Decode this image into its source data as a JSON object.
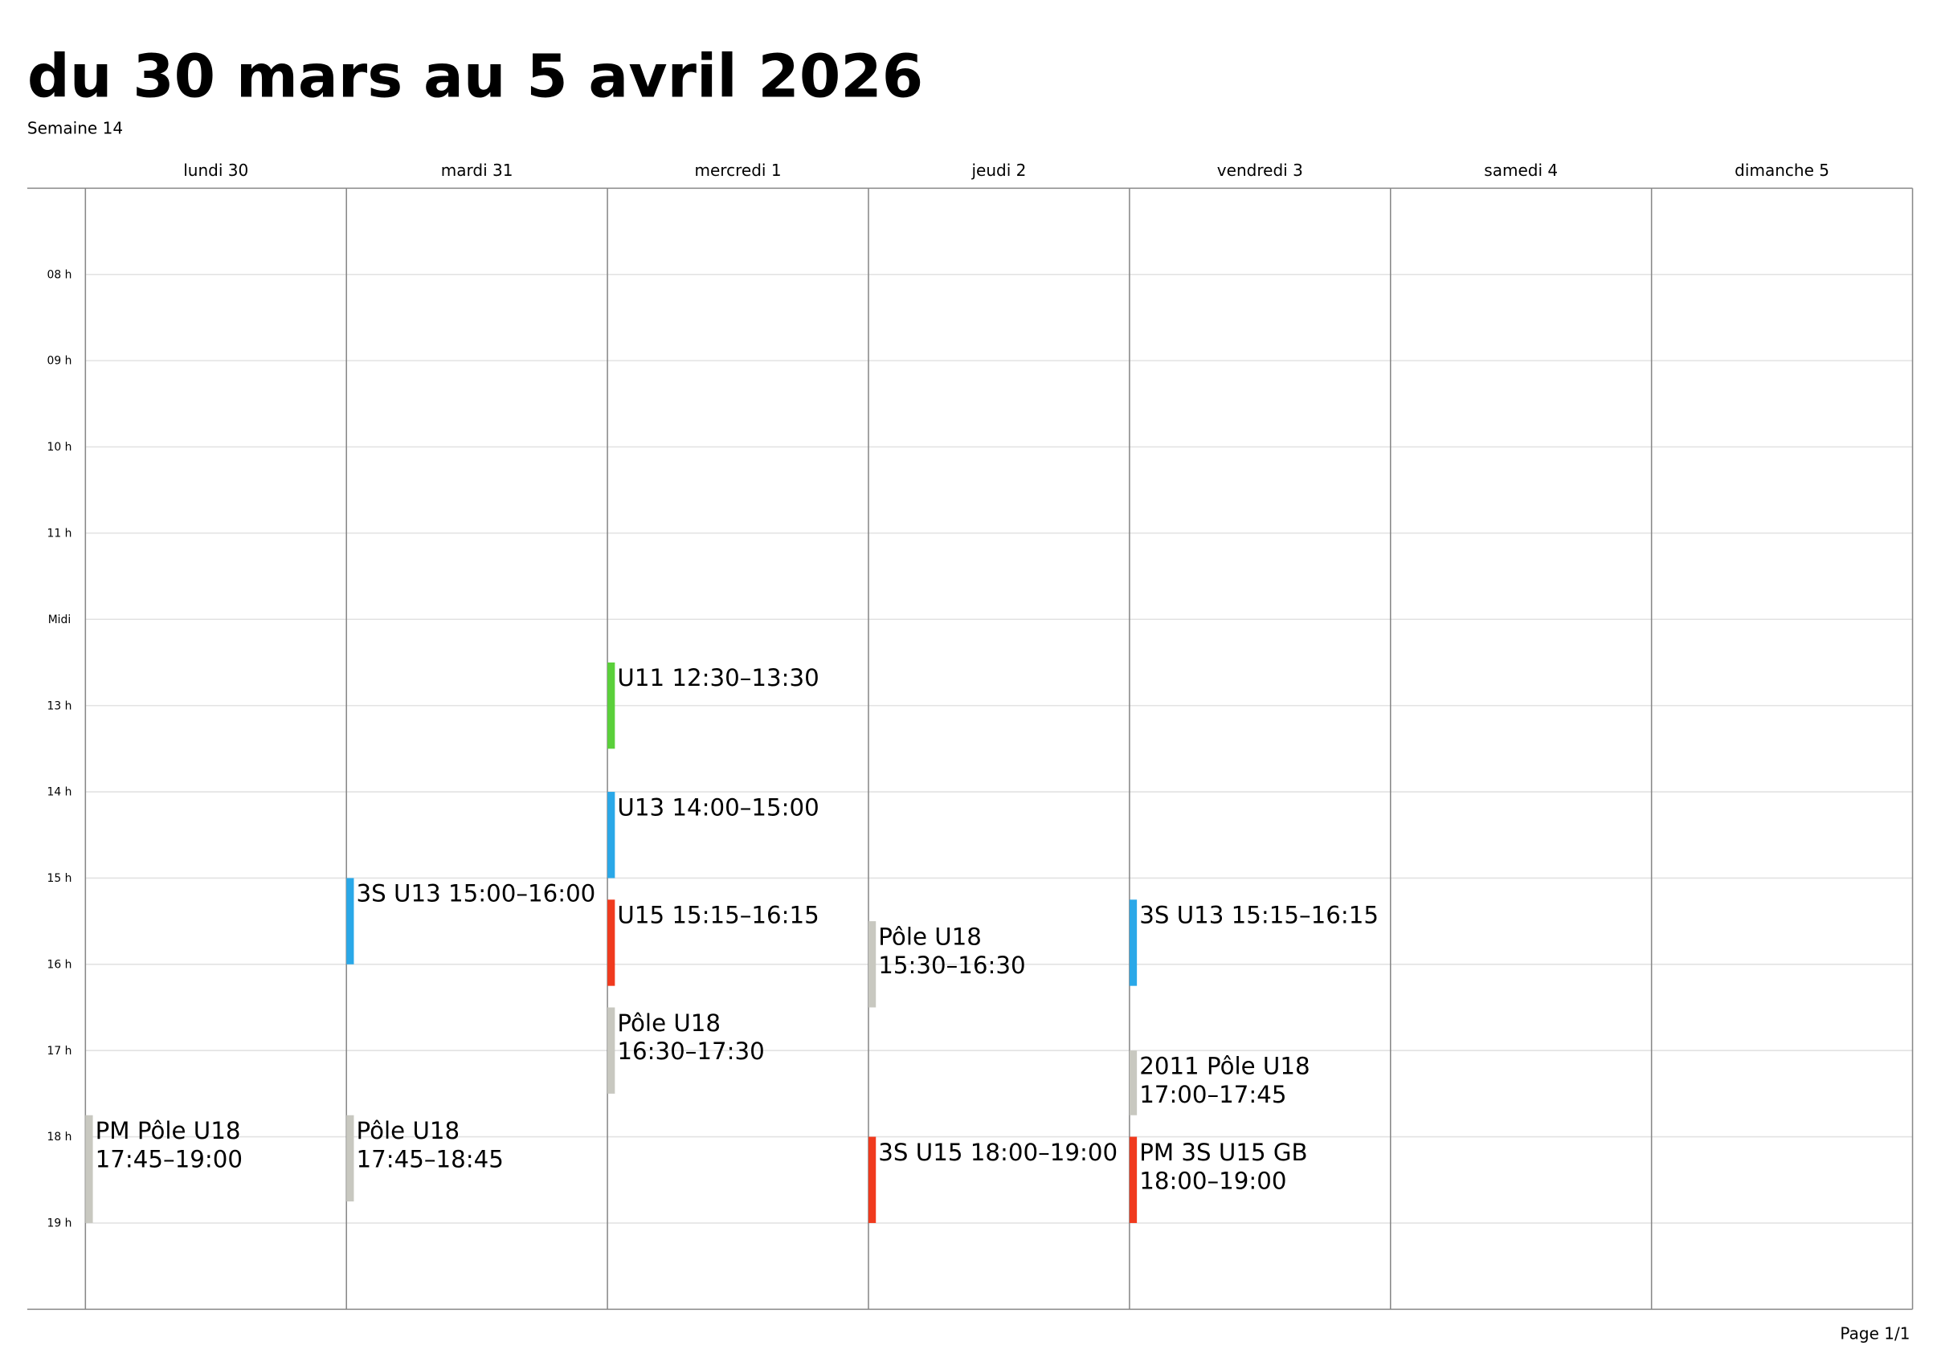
{
  "header": {
    "title": "du 30 mars au 5 avril 2026",
    "subtitle": "Semaine 14"
  },
  "hours": [
    "08 h",
    "09 h",
    "10 h",
    "11 h",
    "Midi",
    "13 h",
    "14 h",
    "15 h",
    "16 h",
    "17 h",
    "18 h",
    "19 h"
  ],
  "days": [
    {
      "label": "lundi 30",
      "events": [
        {
          "lines": [
            "PM Pôle U18",
            "17:45–19:00"
          ],
          "color": "#c8c8c0"
        }
      ]
    },
    {
      "label": "mardi 31",
      "events": [
        {
          "lines": [
            "3S U13 15:00–16:00"
          ],
          "color": "#2aa8e8"
        },
        {
          "lines": [
            "Pôle U18",
            "17:45–18:45"
          ],
          "color": "#c8c8c0"
        }
      ]
    },
    {
      "label": "mercredi 1",
      "events": [
        {
          "lines": [
            "U11 12:30–13:30"
          ],
          "color": "#5ad03a"
        },
        {
          "lines": [
            "U13 14:00–15:00"
          ],
          "color": "#2aa8e8"
        },
        {
          "lines": [
            "U15 15:15–16:15"
          ],
          "color": "#f03a1e"
        },
        {
          "lines": [
            "Pôle U18",
            "16:30–17:30"
          ],
          "color": "#c8c8c0"
        }
      ]
    },
    {
      "label": "jeudi 2",
      "events": [
        {
          "lines": [
            "Pôle U18",
            "15:30–16:30"
          ],
          "color": "#c8c8c0"
        },
        {
          "lines": [
            "3S U15 18:00–19:00"
          ],
          "color": "#f03a1e"
        }
      ]
    },
    {
      "label": "vendredi 3",
      "events": [
        {
          "lines": [
            "3S U13 15:15–16:15"
          ],
          "color": "#2aa8e8"
        },
        {
          "lines": [
            "2011 Pôle U18",
            "17:00–17:45"
          ],
          "color": "#c8c8c0"
        },
        {
          "lines": [
            "PM 3S U15 GB",
            "18:00–19:00"
          ],
          "color": "#f03a1e"
        }
      ]
    },
    {
      "label": "samedi 4",
      "events": []
    },
    {
      "label": "dimanche 5",
      "events": []
    }
  ],
  "footer": {
    "page": "Page 1/1"
  }
}
